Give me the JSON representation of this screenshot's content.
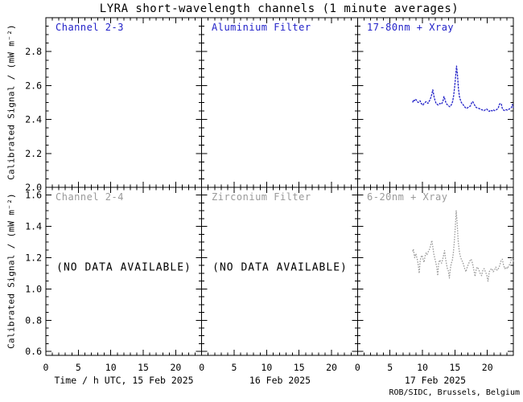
{
  "chart_data": {
    "type": "line",
    "title": "LYRA short-wavelength channels (1 minute averages)",
    "attribution": "ROB/SIDC, Brussels, Belgium",
    "layout_hint": {
      "grid": "2 rows x 3 columns, shared axes, ticks inward, no gridlines, no legend"
    },
    "colors": {
      "active": "#2121c8",
      "inactive": "#9a9a9a",
      "axis": "#000000",
      "no_data_text": "#000000",
      "background": "#ffffff"
    },
    "x_axis": {
      "titles": [
        "Time / h UTC, 15 Feb 2025",
        "16 Feb 2025",
        "17 Feb 2025"
      ],
      "range_hours": [
        0,
        24
      ],
      "major_ticks": [
        0,
        5,
        10,
        15,
        20
      ],
      "minor_step_hours": 1
    },
    "rows": [
      {
        "ylabel": "Calibrated Signal / (mW m⁻²)",
        "ylim": [
          2.0,
          3.0
        ],
        "major_ticks": [
          2.0,
          2.2,
          2.4,
          2.6,
          2.8
        ],
        "minor_step": 0.05
      },
      {
        "ylabel": "Calibrated Signal / (mW m⁻²)",
        "ylim": [
          0.575,
          1.65
        ],
        "major_ticks": [
          0.6,
          0.8,
          1.0,
          1.2,
          1.4,
          1.6
        ],
        "minor_step": 0.05
      }
    ],
    "panels": [
      {
        "row": 0,
        "col": 0,
        "label": "Channel 2-3",
        "state": "active",
        "no_data": "",
        "series": ""
      },
      {
        "row": 0,
        "col": 1,
        "label": "Aluminium Filter",
        "state": "active",
        "no_data": "",
        "series": ""
      },
      {
        "row": 0,
        "col": 2,
        "label": "17-80nm + Xray",
        "state": "active",
        "no_data": "",
        "series": "ch2_3"
      },
      {
        "row": 1,
        "col": 0,
        "label": "Channel 2-4",
        "state": "inactive",
        "no_data": "(NO DATA AVAILABLE)",
        "series": ""
      },
      {
        "row": 1,
        "col": 1,
        "label": "Zirconium Filter",
        "state": "inactive",
        "no_data": "(NO DATA AVAILABLE)",
        "series": ""
      },
      {
        "row": 1,
        "col": 2,
        "label": "6-20nm + Xray",
        "state": "inactive",
        "no_data": "",
        "series": "ch2_4"
      }
    ],
    "series": {
      "ch2_3": {
        "name": "Channel 2-3 (17-80nm + Xray), 17 Feb 2025",
        "color_role": "active",
        "dash": "2.6 1.2",
        "x_unit": "hours UTC 17 Feb 2025",
        "y_unit": "mW m⁻²",
        "points": [
          [
            8.5,
            2.5
          ],
          [
            8.6,
            2.515
          ],
          [
            8.75,
            2.51
          ],
          [
            8.9,
            2.52
          ],
          [
            9.05,
            2.515
          ],
          [
            9.2,
            2.505
          ],
          [
            9.35,
            2.5
          ],
          [
            9.5,
            2.505
          ],
          [
            9.65,
            2.51
          ],
          [
            9.8,
            2.495
          ],
          [
            9.95,
            2.49
          ],
          [
            10.1,
            2.485
          ],
          [
            10.25,
            2.495
          ],
          [
            10.4,
            2.5
          ],
          [
            10.55,
            2.505
          ],
          [
            10.7,
            2.5
          ],
          [
            10.85,
            2.495
          ],
          [
            11.0,
            2.505
          ],
          [
            11.15,
            2.515
          ],
          [
            11.3,
            2.53
          ],
          [
            11.45,
            2.55
          ],
          [
            11.6,
            2.575
          ],
          [
            11.7,
            2.555
          ],
          [
            11.8,
            2.53
          ],
          [
            11.95,
            2.51
          ],
          [
            12.1,
            2.495
          ],
          [
            12.25,
            2.49
          ],
          [
            12.4,
            2.485
          ],
          [
            12.55,
            2.49
          ],
          [
            12.7,
            2.495
          ],
          [
            12.85,
            2.49
          ],
          [
            13.0,
            2.495
          ],
          [
            13.15,
            2.505
          ],
          [
            13.3,
            2.535
          ],
          [
            13.45,
            2.52
          ],
          [
            13.6,
            2.5
          ],
          [
            13.75,
            2.49
          ],
          [
            13.9,
            2.485
          ],
          [
            14.05,
            2.48
          ],
          [
            14.2,
            2.475
          ],
          [
            14.35,
            2.48
          ],
          [
            14.5,
            2.49
          ],
          [
            14.65,
            2.505
          ],
          [
            14.8,
            2.54
          ],
          [
            14.95,
            2.59
          ],
          [
            15.1,
            2.65
          ],
          [
            15.25,
            2.715
          ],
          [
            15.4,
            2.66
          ],
          [
            15.55,
            2.58
          ],
          [
            15.7,
            2.535
          ],
          [
            15.85,
            2.515
          ],
          [
            16.0,
            2.5
          ],
          [
            16.2,
            2.49
          ],
          [
            16.4,
            2.48
          ],
          [
            16.6,
            2.47
          ],
          [
            16.8,
            2.465
          ],
          [
            17.0,
            2.47
          ],
          [
            17.2,
            2.475
          ],
          [
            17.4,
            2.48
          ],
          [
            17.6,
            2.5
          ],
          [
            17.75,
            2.505
          ],
          [
            17.9,
            2.495
          ],
          [
            18.1,
            2.48
          ],
          [
            18.3,
            2.47
          ],
          [
            18.5,
            2.468
          ],
          [
            18.7,
            2.465
          ],
          [
            18.9,
            2.462
          ],
          [
            19.1,
            2.458
          ],
          [
            19.3,
            2.455
          ],
          [
            19.5,
            2.452
          ],
          [
            19.7,
            2.458
          ],
          [
            19.9,
            2.462
          ],
          [
            20.1,
            2.452
          ],
          [
            20.3,
            2.448
          ],
          [
            20.5,
            2.455
          ],
          [
            20.7,
            2.45
          ],
          [
            20.9,
            2.458
          ],
          [
            21.1,
            2.452
          ],
          [
            21.3,
            2.455
          ],
          [
            21.5,
            2.46
          ],
          [
            21.7,
            2.47
          ],
          [
            21.85,
            2.49
          ],
          [
            22.0,
            2.495
          ],
          [
            22.15,
            2.49
          ],
          [
            22.3,
            2.465
          ],
          [
            22.5,
            2.455
          ],
          [
            22.7,
            2.452
          ],
          [
            22.9,
            2.458
          ],
          [
            23.1,
            2.455
          ],
          [
            23.3,
            2.46
          ],
          [
            23.5,
            2.465
          ],
          [
            23.7,
            2.47
          ],
          [
            23.85,
            2.488
          ],
          [
            24.0,
            2.47
          ]
        ]
      },
      "ch2_4": {
        "name": "Channel 2-4 (6-20nm + Xray), 17 Feb 2025",
        "color_role": "inactive",
        "dash": "1.6 1.6",
        "x_unit": "hours UTC 17 Feb 2025",
        "y_unit": "mW m⁻²",
        "points": [
          [
            8.5,
            1.24
          ],
          [
            8.6,
            1.255
          ],
          [
            8.7,
            1.23
          ],
          [
            8.8,
            1.2
          ],
          [
            8.9,
            1.215
          ],
          [
            9.0,
            1.225
          ],
          [
            9.1,
            1.205
          ],
          [
            9.2,
            1.19
          ],
          [
            9.35,
            1.155
          ],
          [
            9.5,
            1.1
          ],
          [
            9.65,
            1.18
          ],
          [
            9.8,
            1.205
          ],
          [
            9.95,
            1.215
          ],
          [
            10.1,
            1.19
          ],
          [
            10.25,
            1.17
          ],
          [
            10.4,
            1.21
          ],
          [
            10.55,
            1.23
          ],
          [
            10.7,
            1.22
          ],
          [
            10.85,
            1.235
          ],
          [
            11.0,
            1.245
          ],
          [
            11.15,
            1.26
          ],
          [
            11.3,
            1.285
          ],
          [
            11.45,
            1.31
          ],
          [
            11.6,
            1.27
          ],
          [
            11.75,
            1.225
          ],
          [
            11.9,
            1.195
          ],
          [
            12.05,
            1.17
          ],
          [
            12.2,
            1.14
          ],
          [
            12.35,
            1.085
          ],
          [
            12.5,
            1.165
          ],
          [
            12.65,
            1.185
          ],
          [
            12.8,
            1.175
          ],
          [
            12.95,
            1.165
          ],
          [
            13.1,
            1.185
          ],
          [
            13.25,
            1.215
          ],
          [
            13.4,
            1.245
          ],
          [
            13.55,
            1.195
          ],
          [
            13.7,
            1.16
          ],
          [
            13.85,
            1.13
          ],
          [
            14.0,
            1.115
          ],
          [
            14.15,
            1.07
          ],
          [
            14.3,
            1.13
          ],
          [
            14.45,
            1.165
          ],
          [
            14.6,
            1.18
          ],
          [
            14.75,
            1.23
          ],
          [
            14.9,
            1.3
          ],
          [
            15.05,
            1.39
          ],
          [
            15.2,
            1.5
          ],
          [
            15.35,
            1.42
          ],
          [
            15.5,
            1.31
          ],
          [
            15.65,
            1.25
          ],
          [
            15.8,
            1.215
          ],
          [
            15.95,
            1.195
          ],
          [
            16.1,
            1.18
          ],
          [
            16.3,
            1.16
          ],
          [
            16.5,
            1.13
          ],
          [
            16.7,
            1.11
          ],
          [
            16.9,
            1.14
          ],
          [
            17.1,
            1.16
          ],
          [
            17.3,
            1.18
          ],
          [
            17.5,
            1.19
          ],
          [
            17.7,
            1.165
          ],
          [
            17.9,
            1.125
          ],
          [
            18.1,
            1.08
          ],
          [
            18.3,
            1.13
          ],
          [
            18.5,
            1.14
          ],
          [
            18.7,
            1.12
          ],
          [
            18.9,
            1.1
          ],
          [
            19.1,
            1.085
          ],
          [
            19.3,
            1.12
          ],
          [
            19.5,
            1.13
          ],
          [
            19.7,
            1.11
          ],
          [
            19.9,
            1.09
          ],
          [
            20.1,
            1.05
          ],
          [
            20.3,
            1.11
          ],
          [
            20.5,
            1.125
          ],
          [
            20.7,
            1.13
          ],
          [
            20.9,
            1.11
          ],
          [
            21.1,
            1.12
          ],
          [
            21.3,
            1.14
          ],
          [
            21.5,
            1.12
          ],
          [
            21.7,
            1.13
          ],
          [
            21.9,
            1.15
          ],
          [
            22.1,
            1.18
          ],
          [
            22.3,
            1.19
          ],
          [
            22.5,
            1.15
          ],
          [
            22.7,
            1.13
          ],
          [
            22.9,
            1.14
          ],
          [
            23.1,
            1.13
          ],
          [
            23.3,
            1.15
          ],
          [
            23.5,
            1.16
          ],
          [
            23.7,
            1.19
          ],
          [
            23.85,
            1.205
          ],
          [
            24.0,
            1.175
          ]
        ]
      }
    }
  }
}
